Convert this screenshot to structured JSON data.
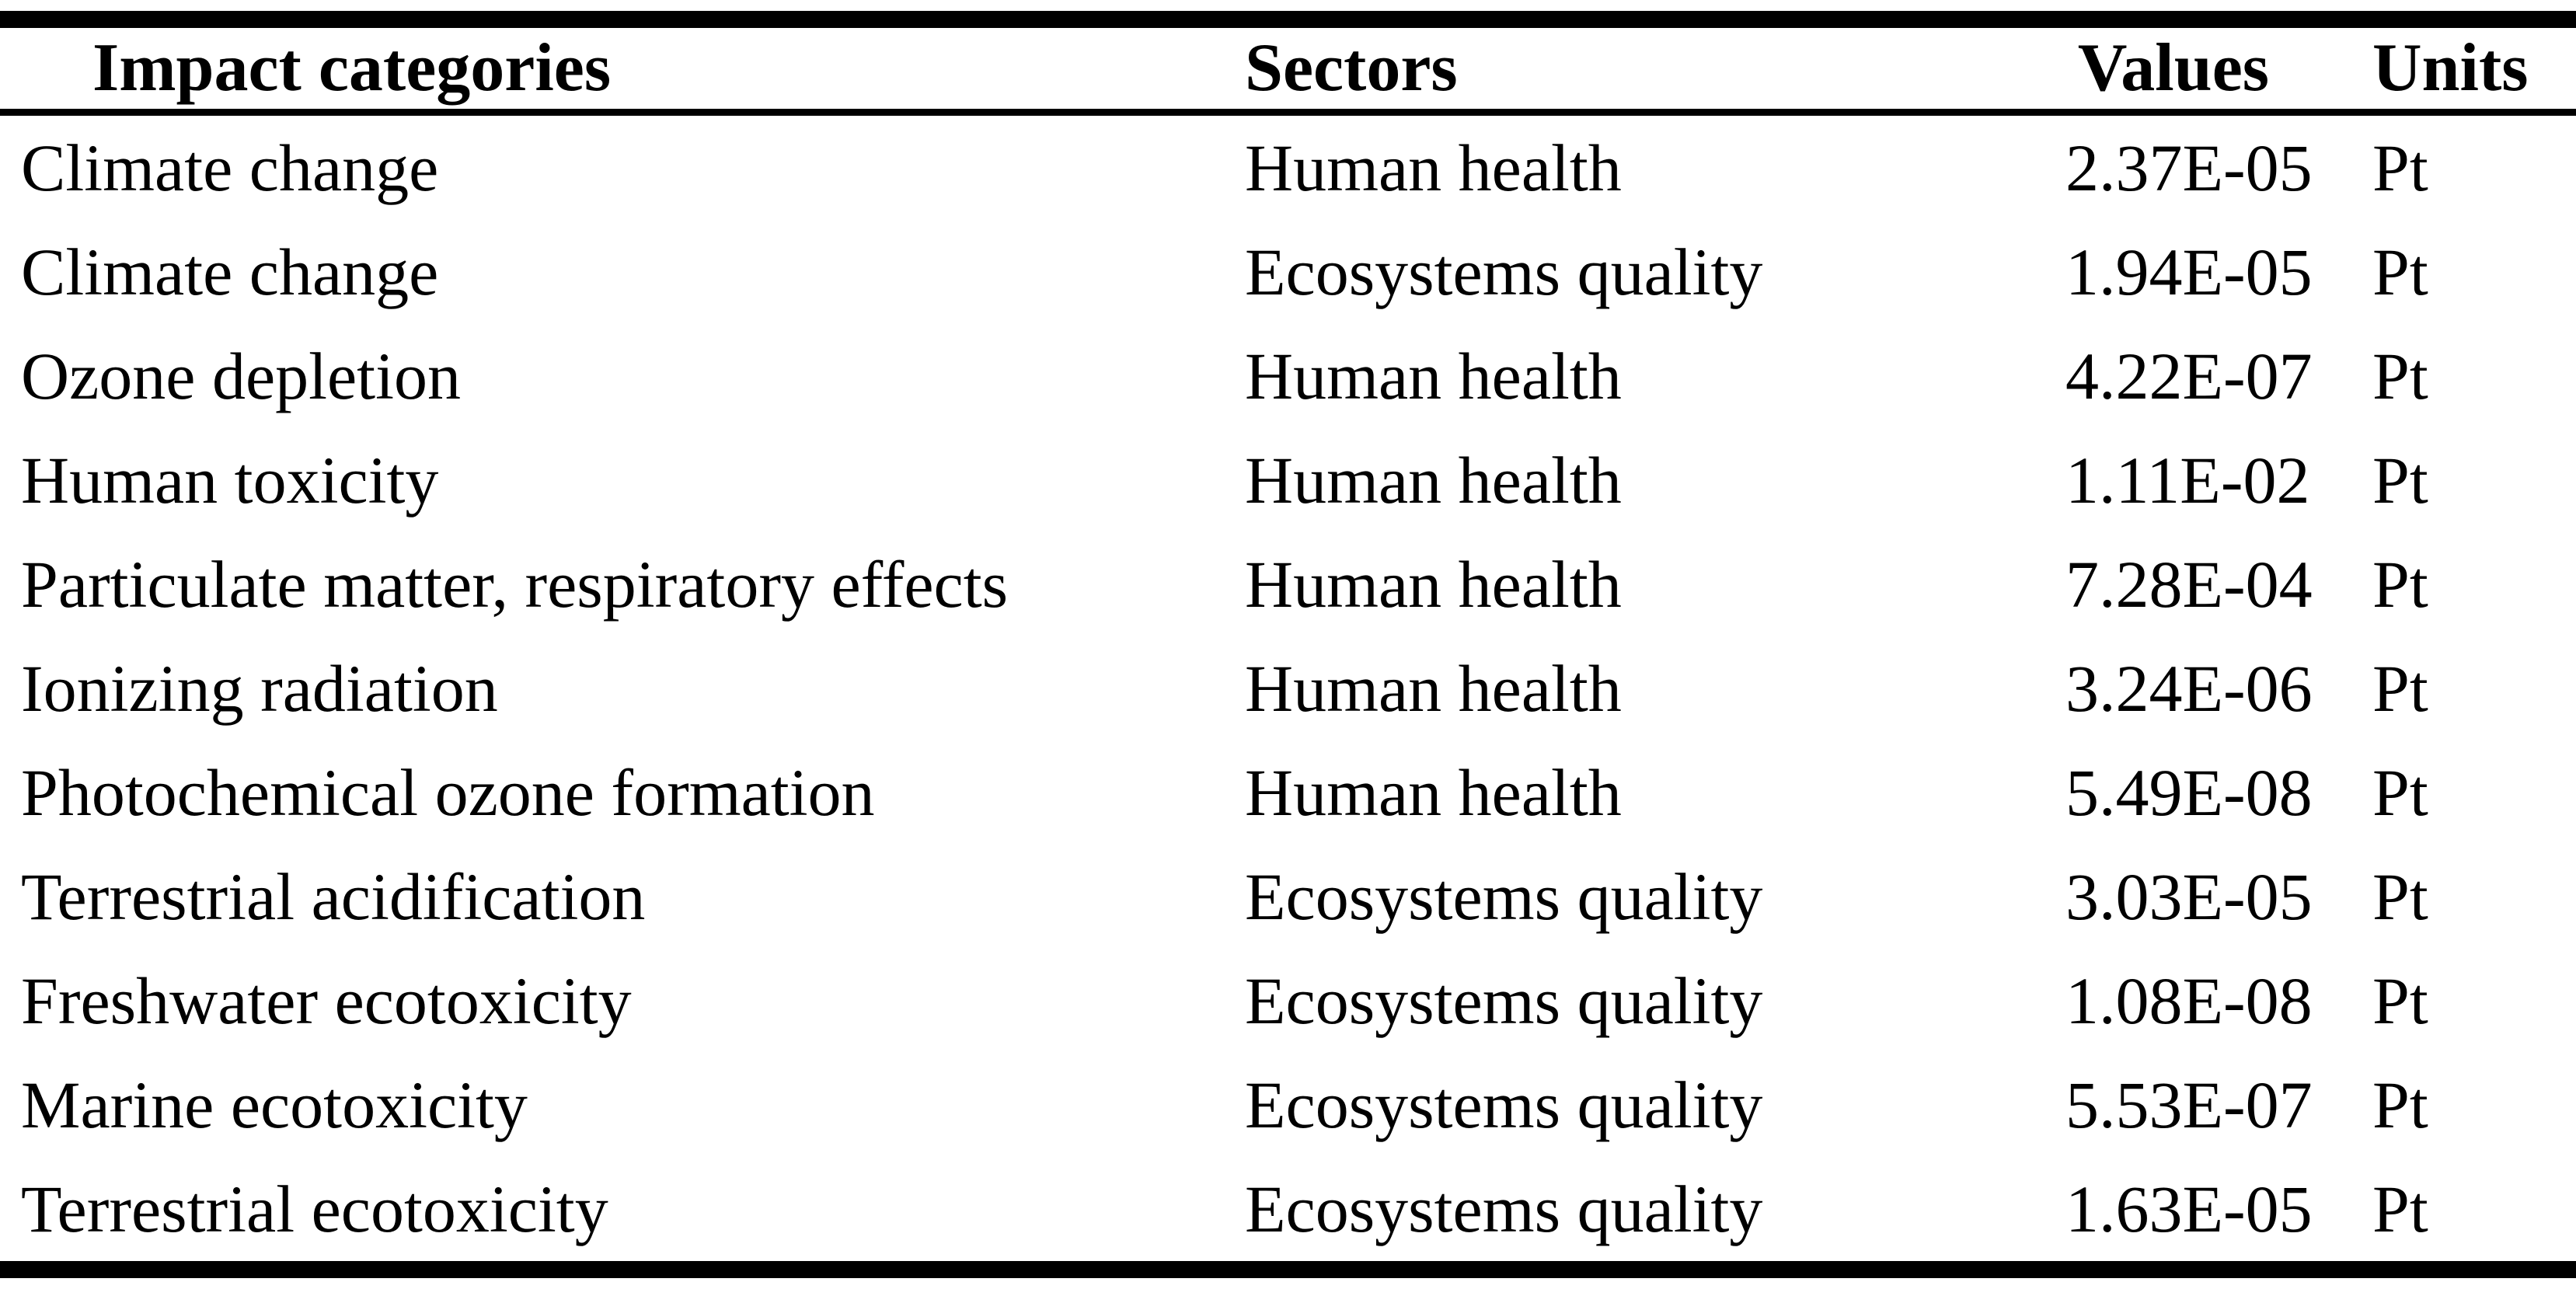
{
  "page": {
    "background_color": "#ffffff",
    "text_color": "#000000",
    "rule_color": "#000000"
  },
  "table": {
    "columns": [
      {
        "key": "impact",
        "label": "Impact categories"
      },
      {
        "key": "sector",
        "label": "Sectors"
      },
      {
        "key": "value",
        "label": "Values"
      },
      {
        "key": "unit",
        "label": "Units"
      }
    ],
    "rows": [
      {
        "impact": "Climate change",
        "sector": "Human health",
        "value": "2.37E-05",
        "unit": "Pt"
      },
      {
        "impact": "Climate change",
        "sector": "Ecosystems quality",
        "value": "1.94E-05",
        "unit": "Pt"
      },
      {
        "impact": "Ozone depletion",
        "sector": "Human health",
        "value": "4.22E-07",
        "unit": "Pt"
      },
      {
        "impact": "Human toxicity",
        "sector": "Human health",
        "value": "1.11E-02",
        "unit": "Pt"
      },
      {
        "impact": "Particulate matter, respiratory effects",
        "sector": "Human health",
        "value": "7.28E-04",
        "unit": "Pt"
      },
      {
        "impact": "Ionizing radiation",
        "sector": "Human health",
        "value": "3.24E-06",
        "unit": "Pt"
      },
      {
        "impact": "Photochemical ozone formation",
        "sector": "Human health",
        "value": "5.49E-08",
        "unit": "Pt"
      },
      {
        "impact": "Terrestrial acidification",
        "sector": "Ecosystems quality",
        "value": "3.03E-05",
        "unit": "Pt"
      },
      {
        "impact": "Freshwater ecotoxicity",
        "sector": "Ecosystems quality",
        "value": "1.08E-08",
        "unit": "Pt"
      },
      {
        "impact": "Marine ecotoxicity",
        "sector": "Ecosystems quality",
        "value": "5.53E-07",
        "unit": "Pt"
      },
      {
        "impact": "Terrestrial ecotoxicity",
        "sector": "Ecosystems quality",
        "value": "1.63E-05",
        "unit": "Pt"
      }
    ]
  }
}
